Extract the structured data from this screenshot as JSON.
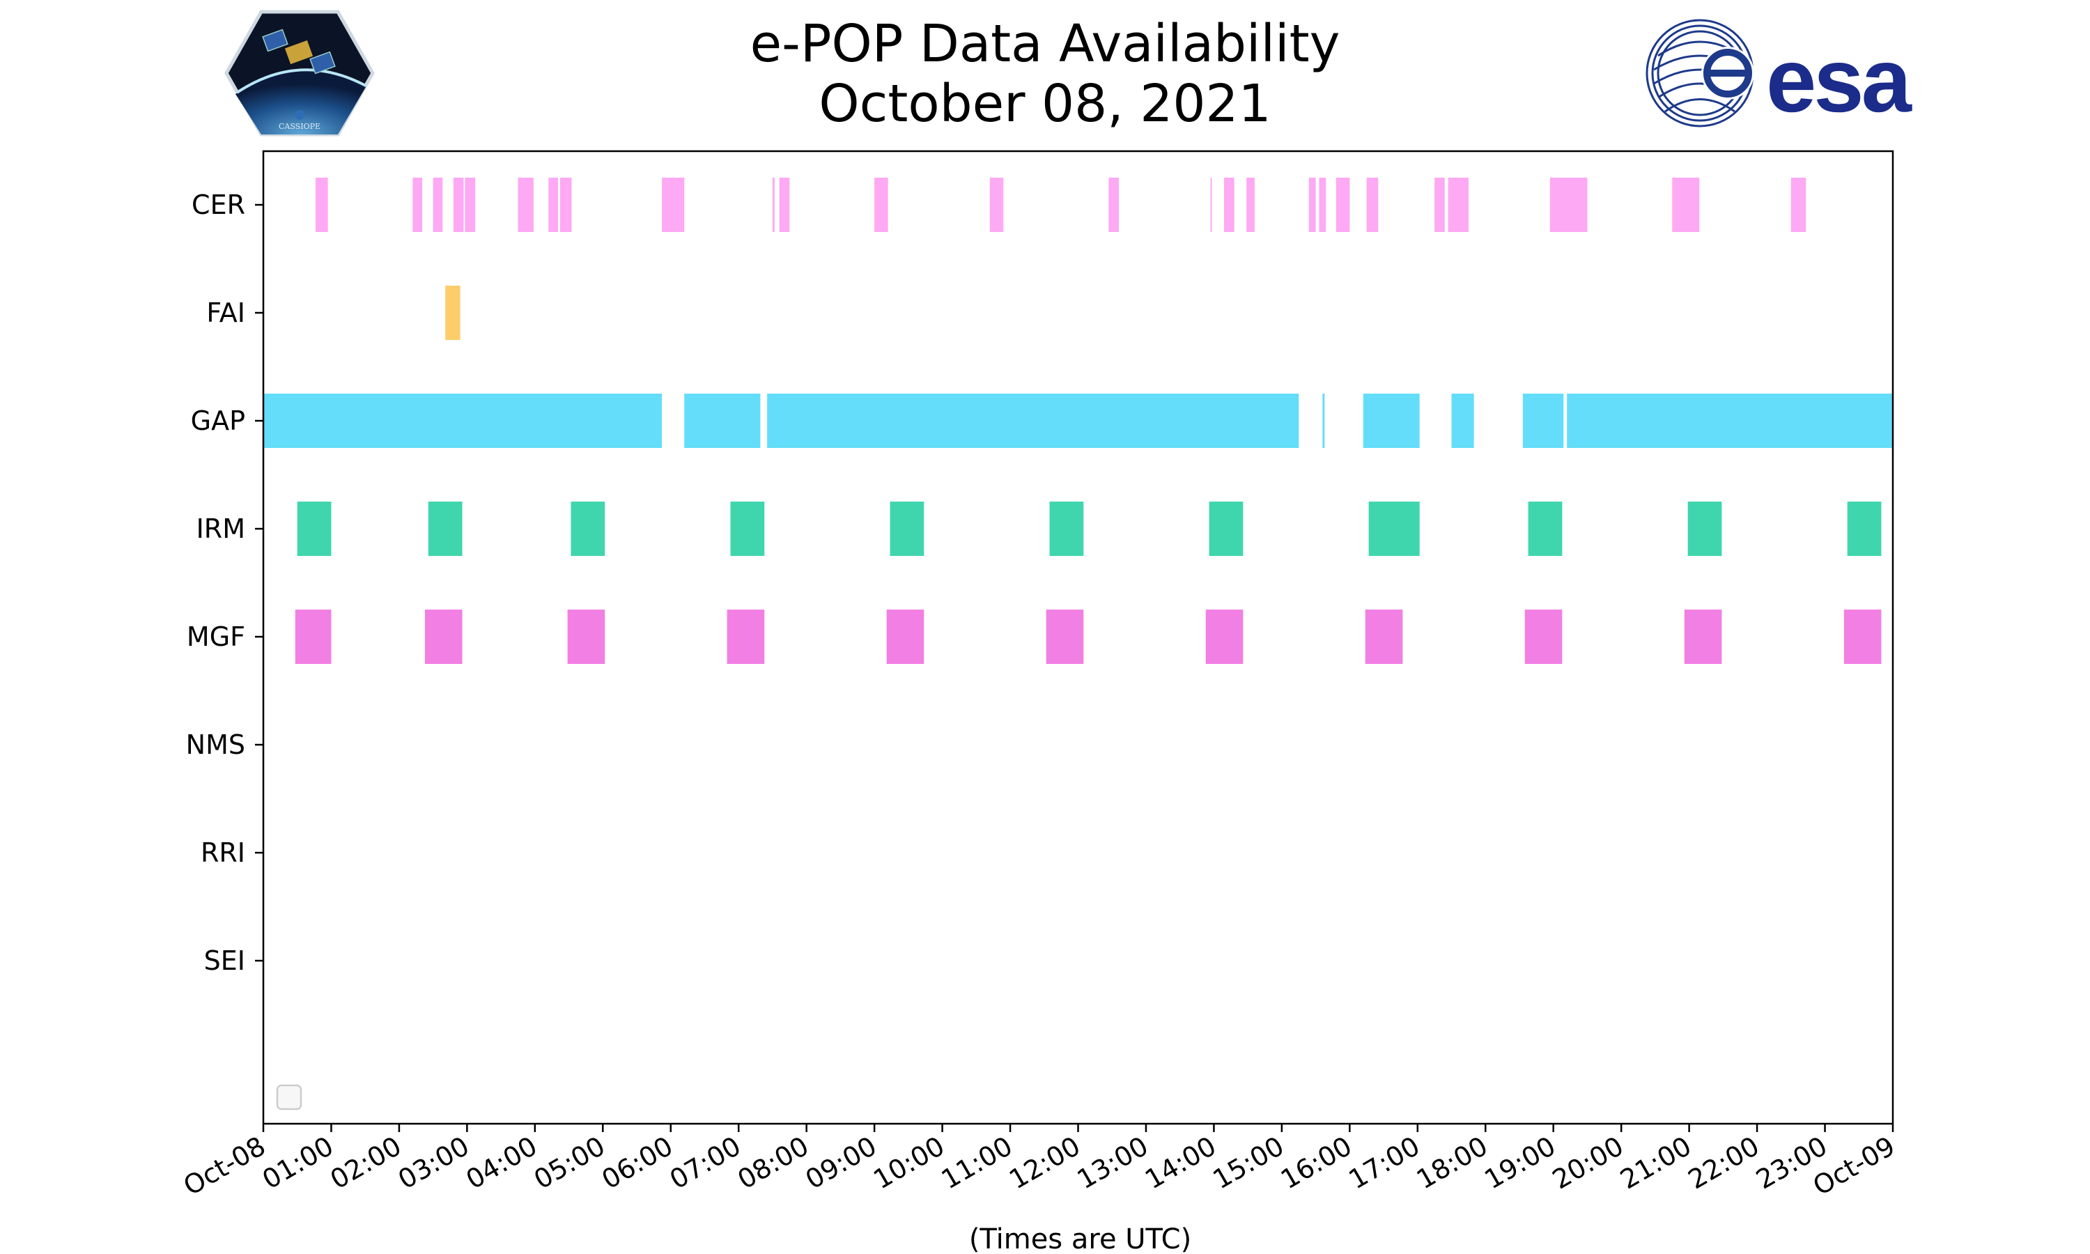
{
  "title": {
    "line1": "e-POP Data Availability",
    "line2": "October 08, 2021"
  },
  "logos": {
    "left_badge_text": "CASSIOPE",
    "right_text": "esa"
  },
  "colors": {
    "CER": "#fda9f3",
    "FAI": "#fdcd6a",
    "GAP": "#63ddf9",
    "IRM": "#3fd6ad",
    "MGF": "#f27fe3",
    "axis": "#000000",
    "legend_box": "#cccccc"
  },
  "chart_data": {
    "type": "broken_barh",
    "title": "e-POP Data Availability October 08, 2021",
    "xlabel": "(Times are UTC)",
    "ylabel": "",
    "x_unit": "hours since Oct-08 00:00 UTC",
    "xlim": [
      0,
      24
    ],
    "xtick_labels": [
      "Oct-08",
      "01:00",
      "02:00",
      "03:00",
      "04:00",
      "05:00",
      "06:00",
      "07:00",
      "08:00",
      "09:00",
      "10:00",
      "11:00",
      "12:00",
      "13:00",
      "14:00",
      "15:00",
      "16:00",
      "17:00",
      "18:00",
      "19:00",
      "20:00",
      "21:00",
      "22:00",
      "23:00",
      "Oct-09"
    ],
    "categories": [
      "CER",
      "FAI",
      "GAP",
      "IRM",
      "MGF",
      "NMS",
      "RRI",
      "SEI"
    ],
    "series": [
      {
        "name": "CER",
        "intervals": [
          [
            0.77,
            0.95
          ],
          [
            2.2,
            2.34
          ],
          [
            2.5,
            2.64
          ],
          [
            2.8,
            2.95
          ],
          [
            2.97,
            3.12
          ],
          [
            3.75,
            3.98
          ],
          [
            4.2,
            4.34
          ],
          [
            4.37,
            4.54
          ],
          [
            5.87,
            6.2
          ],
          [
            7.5,
            7.53
          ],
          [
            7.6,
            7.75
          ],
          [
            9.0,
            9.2
          ],
          [
            10.7,
            10.9
          ],
          [
            12.45,
            12.6
          ],
          [
            13.95,
            13.97
          ],
          [
            14.15,
            14.3
          ],
          [
            14.48,
            14.6
          ],
          [
            15.4,
            15.5
          ],
          [
            15.55,
            15.65
          ],
          [
            15.8,
            16.0
          ],
          [
            16.25,
            16.42
          ],
          [
            17.25,
            17.4
          ],
          [
            17.45,
            17.75
          ],
          [
            18.95,
            19.5
          ],
          [
            20.75,
            21.15
          ],
          [
            22.5,
            22.72
          ]
        ]
      },
      {
        "name": "FAI",
        "intervals": [
          [
            2.68,
            2.9
          ]
        ]
      },
      {
        "name": "GAP",
        "intervals": [
          [
            0.0,
            5.87
          ],
          [
            6.2,
            7.32
          ],
          [
            7.42,
            15.25
          ],
          [
            15.6,
            15.63
          ],
          [
            16.2,
            17.03
          ],
          [
            17.5,
            17.83
          ],
          [
            18.55,
            19.15
          ],
          [
            19.2,
            24.0
          ]
        ]
      },
      {
        "name": "IRM",
        "intervals": [
          [
            0.5,
            1.0
          ],
          [
            2.43,
            2.93
          ],
          [
            4.53,
            5.03
          ],
          [
            6.88,
            7.38
          ],
          [
            9.23,
            9.73
          ],
          [
            11.58,
            12.08
          ],
          [
            13.93,
            14.43
          ],
          [
            16.28,
            17.03
          ],
          [
            18.63,
            19.13
          ],
          [
            20.98,
            21.48
          ],
          [
            23.33,
            23.83
          ]
        ]
      },
      {
        "name": "MGF",
        "intervals": [
          [
            0.47,
            1.0
          ],
          [
            2.38,
            2.93
          ],
          [
            4.48,
            5.03
          ],
          [
            6.83,
            7.38
          ],
          [
            9.18,
            9.73
          ],
          [
            11.53,
            12.08
          ],
          [
            13.88,
            14.43
          ],
          [
            16.23,
            16.78
          ],
          [
            18.58,
            19.13
          ],
          [
            20.93,
            21.48
          ],
          [
            23.28,
            23.83
          ]
        ]
      },
      {
        "name": "NMS",
        "intervals": []
      },
      {
        "name": "RRI",
        "intervals": []
      },
      {
        "name": "SEI",
        "intervals": []
      }
    ],
    "legend": "bottom-left (empty)",
    "grid": false
  }
}
